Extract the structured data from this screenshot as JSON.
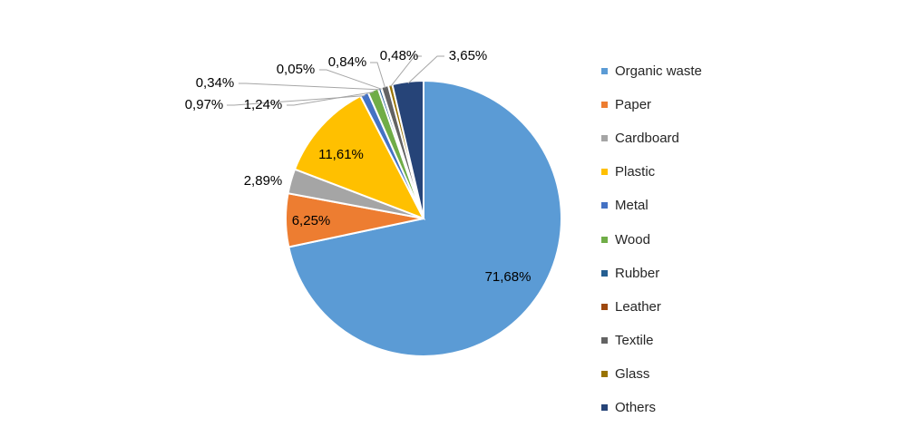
{
  "chart_data": {
    "type": "pie",
    "title": "",
    "legend_position": "right",
    "series": [
      {
        "label": "Organic waste",
        "value": 71.68,
        "value_label": "71,68%",
        "color": "#5B9BD5"
      },
      {
        "label": "Paper",
        "value": 6.25,
        "value_label": "6,25%",
        "color": "#ED7D31"
      },
      {
        "label": "Cardboard",
        "value": 2.89,
        "value_label": "2,89%",
        "color": "#A5A5A5"
      },
      {
        "label": "Plastic",
        "value": 11.61,
        "value_label": "11,61%",
        "color": "#FFC000"
      },
      {
        "label": "Metal",
        "value": 0.97,
        "value_label": "0,97%",
        "color": "#4472C4"
      },
      {
        "label": "Wood",
        "value": 1.24,
        "value_label": "1,24%",
        "color": "#70AD47"
      },
      {
        "label": "Rubber",
        "value": 0.34,
        "value_label": "0,34%",
        "color": "#255E91"
      },
      {
        "label": "Leather",
        "value": 0.05,
        "value_label": "0,05%",
        "color": "#9E480E"
      },
      {
        "label": "Textile",
        "value": 0.84,
        "value_label": "0,84%",
        "color": "#636363"
      },
      {
        "label": "Glass",
        "value": 0.48,
        "value_label": "0,48%",
        "color": "#997300"
      },
      {
        "label": "Others",
        "value": 3.65,
        "value_label": "3,65%",
        "color": "#264478"
      }
    ]
  }
}
